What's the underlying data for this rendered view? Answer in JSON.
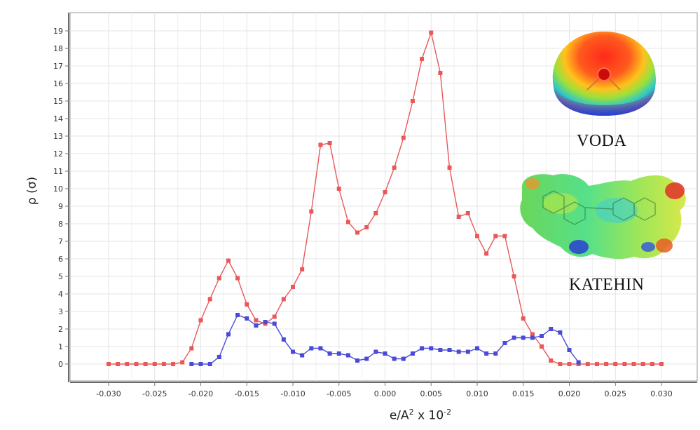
{
  "chart_data": {
    "type": "line",
    "xlabel": "e/A² x 10⁻²",
    "ylabel": "ρ (σ)",
    "xlim": [
      -0.03,
      0.03
    ],
    "ylim": [
      0,
      19
    ],
    "grid": true,
    "x_ticks": [
      "-0.030",
      "-0.025",
      "-0.020",
      "-0.015",
      "-0.010",
      "-0.005",
      "0.000",
      "0.005",
      "0.010",
      "0.015",
      "0.020",
      "0.025",
      "0.030"
    ],
    "y_ticks": [
      "0",
      "1",
      "2",
      "3",
      "4",
      "5",
      "6",
      "7",
      "8",
      "9",
      "10",
      "11",
      "12",
      "13",
      "14",
      "15",
      "16",
      "17",
      "18",
      "19"
    ],
    "series": [
      {
        "name": "VODA",
        "color": "#e8585a",
        "x": [
          -0.03,
          -0.029,
          -0.028,
          -0.027,
          -0.026,
          -0.025,
          -0.024,
          -0.023,
          -0.022,
          -0.021,
          -0.02,
          -0.019,
          -0.018,
          -0.017,
          -0.016,
          -0.015,
          -0.014,
          -0.013,
          -0.012,
          -0.011,
          -0.01,
          -0.009,
          -0.008,
          -0.007,
          -0.006,
          -0.005,
          -0.004,
          -0.003,
          -0.002,
          -0.001,
          0.0,
          0.001,
          0.002,
          0.003,
          0.004,
          0.005,
          0.006,
          0.007,
          0.008,
          0.009,
          0.01,
          0.011,
          0.012,
          0.013,
          0.014,
          0.015,
          0.016,
          0.017,
          0.018,
          0.019,
          0.02,
          0.021,
          0.022,
          0.023,
          0.024,
          0.025,
          0.026,
          0.027,
          0.028,
          0.029,
          0.03
        ],
        "y": [
          0,
          0,
          0,
          0,
          0,
          0,
          0,
          0,
          0.1,
          0.9,
          2.5,
          3.7,
          4.9,
          5.9,
          4.9,
          3.4,
          2.5,
          2.3,
          2.7,
          3.7,
          4.4,
          5.4,
          8.7,
          12.5,
          12.6,
          10.0,
          8.1,
          7.5,
          7.8,
          8.6,
          9.8,
          11.2,
          12.9,
          15.0,
          17.4,
          18.9,
          16.6,
          11.2,
          8.4,
          8.6,
          7.3,
          6.3,
          7.3,
          7.3,
          5.0,
          2.6,
          1.7,
          1.0,
          0.2,
          0,
          0,
          0,
          0,
          0,
          0,
          0,
          0,
          0,
          0,
          0,
          0
        ]
      },
      {
        "name": "KATEHIN",
        "color": "#4a4ad8",
        "x": [
          -0.021,
          -0.02,
          -0.019,
          -0.018,
          -0.017,
          -0.016,
          -0.015,
          -0.014,
          -0.013,
          -0.012,
          -0.011,
          -0.01,
          -0.009,
          -0.008,
          -0.007,
          -0.006,
          -0.005,
          -0.004,
          -0.003,
          -0.002,
          -0.001,
          0.0,
          0.001,
          0.002,
          0.003,
          0.004,
          0.005,
          0.006,
          0.007,
          0.008,
          0.009,
          0.01,
          0.011,
          0.012,
          0.013,
          0.014,
          0.015,
          0.016,
          0.017,
          0.018,
          0.019,
          0.02,
          0.021
        ],
        "y": [
          0,
          0,
          0,
          0.4,
          1.7,
          2.8,
          2.6,
          2.2,
          2.4,
          2.3,
          1.4,
          0.7,
          0.5,
          0.9,
          0.9,
          0.6,
          0.6,
          0.5,
          0.2,
          0.3,
          0.7,
          0.6,
          0.3,
          0.3,
          0.6,
          0.9,
          0.9,
          0.8,
          0.8,
          0.7,
          0.7,
          0.9,
          0.6,
          0.6,
          1.2,
          1.5,
          1.5,
          1.5,
          1.6,
          2.0,
          1.8,
          0.8,
          0.1
        ]
      }
    ]
  },
  "labels": {
    "molecule_top": "VODA",
    "molecule_bottom": "KATEHIN",
    "x_title_base": "e/A",
    "x_title_sup1": "2",
    "x_title_mid": " x 10",
    "x_title_sup2": "-2",
    "y_title": "ρ (σ)"
  },
  "colors": {
    "voda_line": "#e8585a",
    "katehin_line": "#4a4ad8",
    "grid": "#e4e4e4"
  },
  "icons": [
    "voda-molecule-surface-icon",
    "katehin-molecule-surface-icon"
  ]
}
